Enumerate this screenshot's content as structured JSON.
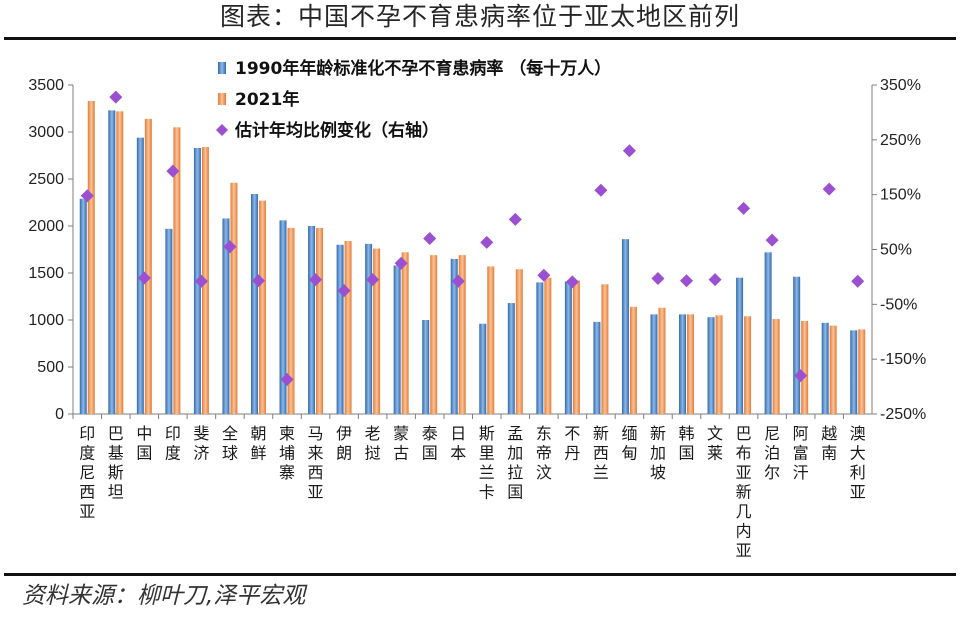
{
  "header": {
    "title": "图表：中国不孕不育患病率位于亚太地区前列"
  },
  "footer": {
    "source": "资料来源：柳叶刀,泽平宏观"
  },
  "colors": {
    "bar1990": "#4f86c6",
    "bar2021": "#f0954f",
    "diamond": "#9b4fd1"
  },
  "chart_data": {
    "type": "bar",
    "categories": [
      "印度尼西亚",
      "巴基斯坦",
      "中国",
      "印度",
      "斐济",
      "全球",
      "朝鲜",
      "柬埔寨",
      "马来西亚",
      "伊朗",
      "老挝",
      "蒙古",
      "泰国",
      "日本",
      "斯里兰卡",
      "孟加拉国",
      "东帝汶",
      "不丹",
      "新西兰",
      "缅甸",
      "新加坡",
      "韩国",
      "文莱",
      "巴布亚新几内亚",
      "尼泊尔",
      "阿富汗",
      "越南",
      "澳大利亚"
    ],
    "series": [
      {
        "name": "1990年年龄标准化不孕不育患病率 （每十万人）",
        "axis": "left",
        "kind": "bar",
        "values": [
          2290,
          3230,
          2940,
          1970,
          2830,
          2080,
          2340,
          2060,
          2000,
          1800,
          1810,
          1580,
          1000,
          1650,
          960,
          1180,
          1400,
          1410,
          980,
          1860,
          1060,
          1060,
          1030,
          1450,
          1720,
          1460,
          970,
          890
        ]
      },
      {
        "name": "2021年",
        "axis": "left",
        "kind": "bar",
        "values": [
          3330,
          3220,
          3140,
          3050,
          2840,
          2460,
          2270,
          1980,
          1980,
          1840,
          1760,
          1720,
          1690,
          1690,
          1570,
          1540,
          1450,
          1420,
          1380,
          1140,
          1130,
          1060,
          1050,
          1040,
          1010,
          990,
          940,
          900
        ]
      },
      {
        "name": "估计年均比例变化（右轴）",
        "axis": "right",
        "kind": "scatter",
        "unit": "%",
        "values": [
          148,
          328,
          -2,
          193,
          -8,
          55,
          -7,
          -187,
          -5,
          -25,
          -5,
          25,
          70,
          -8,
          63,
          105,
          3,
          -9,
          158,
          230,
          -3,
          -7,
          -5,
          125,
          67,
          -180,
          160,
          -8
        ]
      }
    ],
    "y_left": {
      "min": 0,
      "max": 3500,
      "step": 500,
      "ticks": [
        "0",
        "500",
        "1000",
        "1500",
        "2000",
        "2500",
        "3000",
        "3500"
      ]
    },
    "y_right": {
      "min": -250,
      "max": 350,
      "step": 100,
      "ticks": [
        "-250%",
        "-150%",
        "-50%",
        "50%",
        "150%",
        "250%",
        "350%"
      ]
    },
    "legend_position": "top-center",
    "grid": false
  }
}
